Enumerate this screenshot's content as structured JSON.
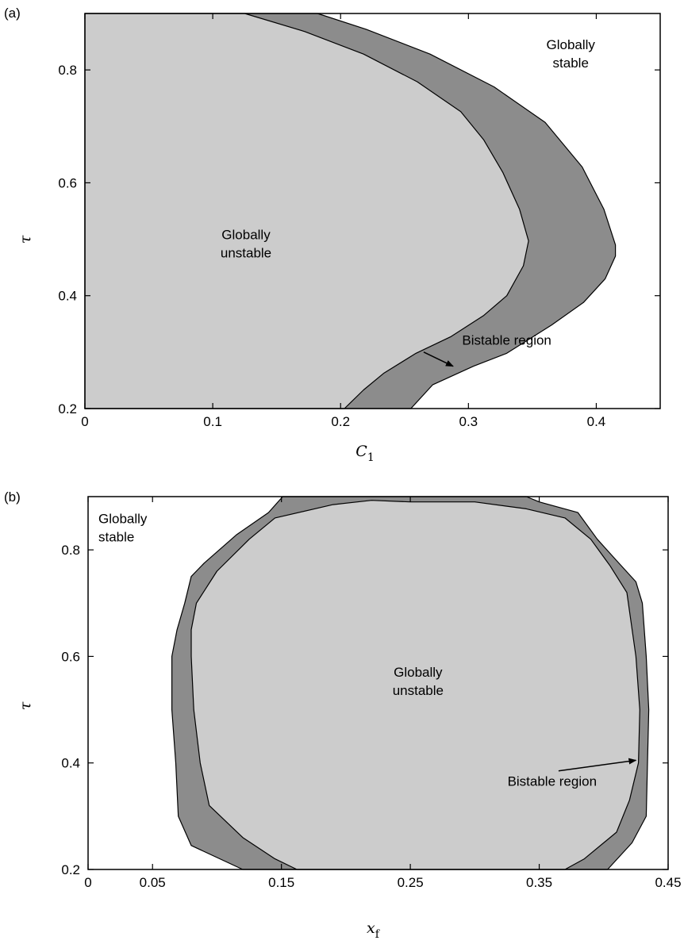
{
  "colors": {
    "unstable_fill": "#cccccc",
    "bistable_fill": "#8c8c8c",
    "outline": "#000000",
    "background": "#ffffff"
  },
  "chart_data": [
    {
      "type": "area",
      "panel_label": "(a)",
      "xlabel": "C",
      "xlabel_sub": "1",
      "ylabel": "τ",
      "xlim": [
        0,
        0.45
      ],
      "ylim": [
        0.2,
        0.9
      ],
      "x_ticks": [
        0,
        0.1,
        0.2,
        0.3,
        0.4
      ],
      "x_tick_labels": [
        "0",
        "0.1",
        "0.2",
        "0.3",
        "0.4"
      ],
      "y_ticks": [
        0.2,
        0.4,
        0.6,
        0.8
      ],
      "y_tick_labels": [
        "0.2",
        "0.4",
        "0.6",
        "0.8"
      ],
      "regions": [
        {
          "kind": "bistable",
          "fill": "bistable_fill",
          "boundary": [
            [
              0.0,
              0.9
            ],
            [
              0.182,
              0.9
            ],
            [
              0.22,
              0.872
            ],
            [
              0.27,
              0.828
            ],
            [
              0.32,
              0.77
            ],
            [
              0.36,
              0.707
            ],
            [
              0.389,
              0.628
            ],
            [
              0.406,
              0.553
            ],
            [
              0.415,
              0.49
            ],
            [
              0.415,
              0.47
            ],
            [
              0.407,
              0.43
            ],
            [
              0.39,
              0.388
            ],
            [
              0.365,
              0.348
            ],
            [
              0.33,
              0.298
            ],
            [
              0.304,
              0.275
            ],
            [
              0.272,
              0.242
            ],
            [
              0.255,
              0.2
            ],
            [
              0.0,
              0.2
            ]
          ]
        },
        {
          "kind": "unstable",
          "fill": "unstable_fill",
          "boundary": [
            [
              0.0,
              0.9
            ],
            [
              0.125,
              0.9
            ],
            [
              0.172,
              0.868
            ],
            [
              0.218,
              0.828
            ],
            [
              0.26,
              0.779
            ],
            [
              0.294,
              0.726
            ],
            [
              0.312,
              0.676
            ],
            [
              0.327,
              0.618
            ],
            [
              0.34,
              0.553
            ],
            [
              0.347,
              0.497
            ],
            [
              0.343,
              0.453
            ],
            [
              0.33,
              0.4
            ],
            [
              0.312,
              0.365
            ],
            [
              0.286,
              0.327
            ],
            [
              0.259,
              0.298
            ],
            [
              0.234,
              0.263
            ],
            [
              0.218,
              0.233
            ],
            [
              0.203,
              0.2
            ],
            [
              0.0,
              0.2
            ]
          ]
        }
      ],
      "annotations": [
        {
          "text_lines": [
            "Globally",
            "unstable"
          ],
          "x": 0.126,
          "y": 0.5,
          "align": "middle"
        },
        {
          "text_lines": [
            "Globally",
            "stable"
          ],
          "x": 0.38,
          "y": 0.837,
          "align": "middle"
        },
        {
          "text_lines": [
            "Bistable region"
          ],
          "x": 0.33,
          "y": 0.313,
          "align": "middle",
          "arrow_from": [
            0.265,
            0.3
          ],
          "arrow_to": [
            0.288,
            0.275
          ]
        }
      ]
    },
    {
      "type": "area",
      "panel_label": "(b)",
      "xlabel": "x",
      "xlabel_sub": "f",
      "ylabel": "τ",
      "xlim": [
        0,
        0.45
      ],
      "ylim": [
        0.2,
        0.9
      ],
      "x_ticks": [
        0,
        0.05,
        0.15,
        0.25,
        0.35,
        0.45
      ],
      "x_tick_labels": [
        "0",
        "0.05",
        "0.15",
        "0.25",
        "0.35",
        "0.45"
      ],
      "y_ticks": [
        0.2,
        0.4,
        0.6,
        0.8
      ],
      "y_tick_labels": [
        "0.2",
        "0.4",
        "0.6",
        "0.8"
      ],
      "regions": [
        {
          "kind": "bistable",
          "fill": "bistable_fill",
          "boundary": [
            [
              0.12,
              0.2
            ],
            [
              0.08,
              0.245
            ],
            [
              0.07,
              0.3
            ],
            [
              0.068,
              0.4
            ],
            [
              0.065,
              0.5
            ],
            [
              0.065,
              0.6
            ],
            [
              0.069,
              0.65
            ],
            [
              0.075,
              0.7
            ],
            [
              0.08,
              0.75
            ],
            [
              0.09,
              0.775
            ],
            [
              0.115,
              0.828
            ],
            [
              0.14,
              0.87
            ],
            [
              0.151,
              0.9
            ],
            [
              0.34,
              0.9
            ],
            [
              0.35,
              0.89
            ],
            [
              0.38,
              0.87
            ],
            [
              0.395,
              0.82
            ],
            [
              0.41,
              0.78
            ],
            [
              0.425,
              0.74
            ],
            [
              0.43,
              0.7
            ],
            [
              0.433,
              0.6
            ],
            [
              0.435,
              0.5
            ],
            [
              0.434,
              0.4
            ],
            [
              0.433,
              0.3
            ],
            [
              0.422,
              0.25
            ],
            [
              0.403,
              0.2
            ]
          ]
        },
        {
          "kind": "unstable",
          "fill": "unstable_fill",
          "boundary": [
            [
              0.162,
              0.2
            ],
            [
              0.145,
              0.22
            ],
            [
              0.12,
              0.26
            ],
            [
              0.094,
              0.32
            ],
            [
              0.087,
              0.4
            ],
            [
              0.082,
              0.5
            ],
            [
              0.08,
              0.6
            ],
            [
              0.08,
              0.65
            ],
            [
              0.084,
              0.7
            ],
            [
              0.1,
              0.76
            ],
            [
              0.125,
              0.82
            ],
            [
              0.145,
              0.86
            ],
            [
              0.19,
              0.885
            ],
            [
              0.22,
              0.893
            ],
            [
              0.25,
              0.89
            ],
            [
              0.3,
              0.89
            ],
            [
              0.34,
              0.877
            ],
            [
              0.37,
              0.86
            ],
            [
              0.39,
              0.82
            ],
            [
              0.405,
              0.77
            ],
            [
              0.418,
              0.72
            ],
            [
              0.425,
              0.6
            ],
            [
              0.428,
              0.5
            ],
            [
              0.427,
              0.4
            ],
            [
              0.42,
              0.33
            ],
            [
              0.41,
              0.27
            ],
            [
              0.385,
              0.22
            ],
            [
              0.37,
              0.2
            ]
          ]
        }
      ],
      "annotations": [
        {
          "text_lines": [
            "Globally",
            "unstable"
          ],
          "x": 0.256,
          "y": 0.562,
          "align": "middle"
        },
        {
          "text_lines": [
            "Globally",
            "stable"
          ],
          "x": 0.008,
          "y": 0.85,
          "align": "start"
        },
        {
          "text_lines": [
            "Bistable region"
          ],
          "x": 0.36,
          "y": 0.357,
          "align": "middle",
          "arrow_from": [
            0.365,
            0.385
          ],
          "arrow_to": [
            0.425,
            0.405
          ]
        }
      ]
    }
  ]
}
